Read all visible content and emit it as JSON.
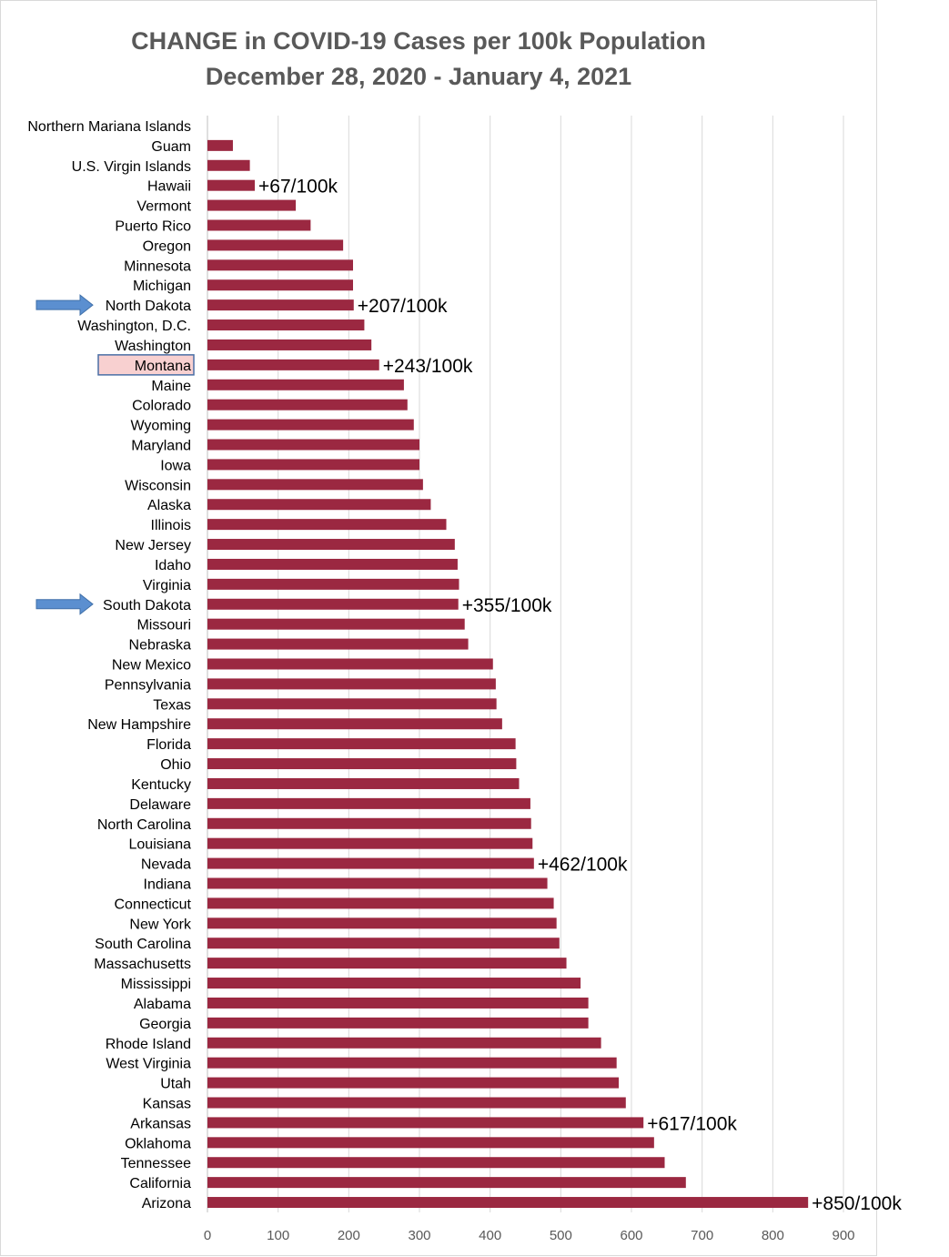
{
  "chart_data": {
    "type": "bar",
    "orientation": "horizontal",
    "title": "CHANGE in COVID-19 Cases per 100k Population",
    "subtitle": "December 28, 2020 - January 4, 2021",
    "xlabel": "",
    "ylabel": "",
    "xlim": [
      0,
      900
    ],
    "xticks": [
      "0",
      "100",
      "200",
      "300",
      "400",
      "500",
      "600",
      "700",
      "800",
      "900"
    ],
    "grid": true,
    "legend": "none",
    "bar_color": "#9b2841",
    "highlight_box_color": "#f8d0d0",
    "highlight_border_color": "#4a6fa5",
    "arrow_color": "#5b8fd0",
    "highlighted_category": "Montana",
    "arrow_categories": [
      "North Dakota",
      "South Dakota"
    ],
    "categories": [
      "Northern Mariana Islands",
      "Guam",
      "U.S. Virgin Islands",
      "Hawaii",
      "Vermont",
      "Puerto Rico",
      "Oregon",
      "Minnesota",
      "Michigan",
      "North Dakota",
      "Washington, D.C.",
      "Washington",
      "Montana",
      "Maine",
      "Colorado",
      "Wyoming",
      "Maryland",
      "Iowa",
      "Wisconsin",
      "Alaska",
      "Illinois",
      "New Jersey",
      "Idaho",
      "Virginia",
      "South Dakota",
      "Missouri",
      "Nebraska",
      "New Mexico",
      "Pennsylvania",
      "Texas",
      "New Hampshire",
      "Florida",
      "Ohio",
      "Kentucky",
      "Delaware",
      "North Carolina",
      "Louisiana",
      "Nevada",
      "Indiana",
      "Connecticut",
      "New York",
      "South Carolina",
      "Massachusetts",
      "Mississippi",
      "Alabama",
      "Georgia",
      "Rhode Island",
      "West Virginia",
      "Utah",
      "Kansas",
      "Arkansas",
      "Oklahoma",
      "Tennessee",
      "California",
      "Arizona"
    ],
    "values": [
      0,
      36,
      60,
      67,
      125,
      146,
      192,
      206,
      206,
      207,
      222,
      232,
      243,
      278,
      283,
      292,
      300,
      300,
      305,
      316,
      338,
      350,
      354,
      356,
      355,
      364,
      369,
      404,
      408,
      409,
      417,
      436,
      437,
      441,
      457,
      458,
      460,
      462,
      481,
      490,
      494,
      498,
      508,
      528,
      539,
      539,
      557,
      579,
      582,
      592,
      617,
      632,
      647,
      677,
      850
    ],
    "annotations": [
      {
        "category": "Hawaii",
        "text": "+67/100k"
      },
      {
        "category": "North Dakota",
        "text": "+207/100k"
      },
      {
        "category": "Montana",
        "text": "+243/100k"
      },
      {
        "category": "South Dakota",
        "text": "+355/100k"
      },
      {
        "category": "Nevada",
        "text": "+462/100k"
      },
      {
        "category": "Arkansas",
        "text": "+617/100k"
      },
      {
        "category": "Arizona",
        "text": "+850/100k"
      }
    ]
  }
}
